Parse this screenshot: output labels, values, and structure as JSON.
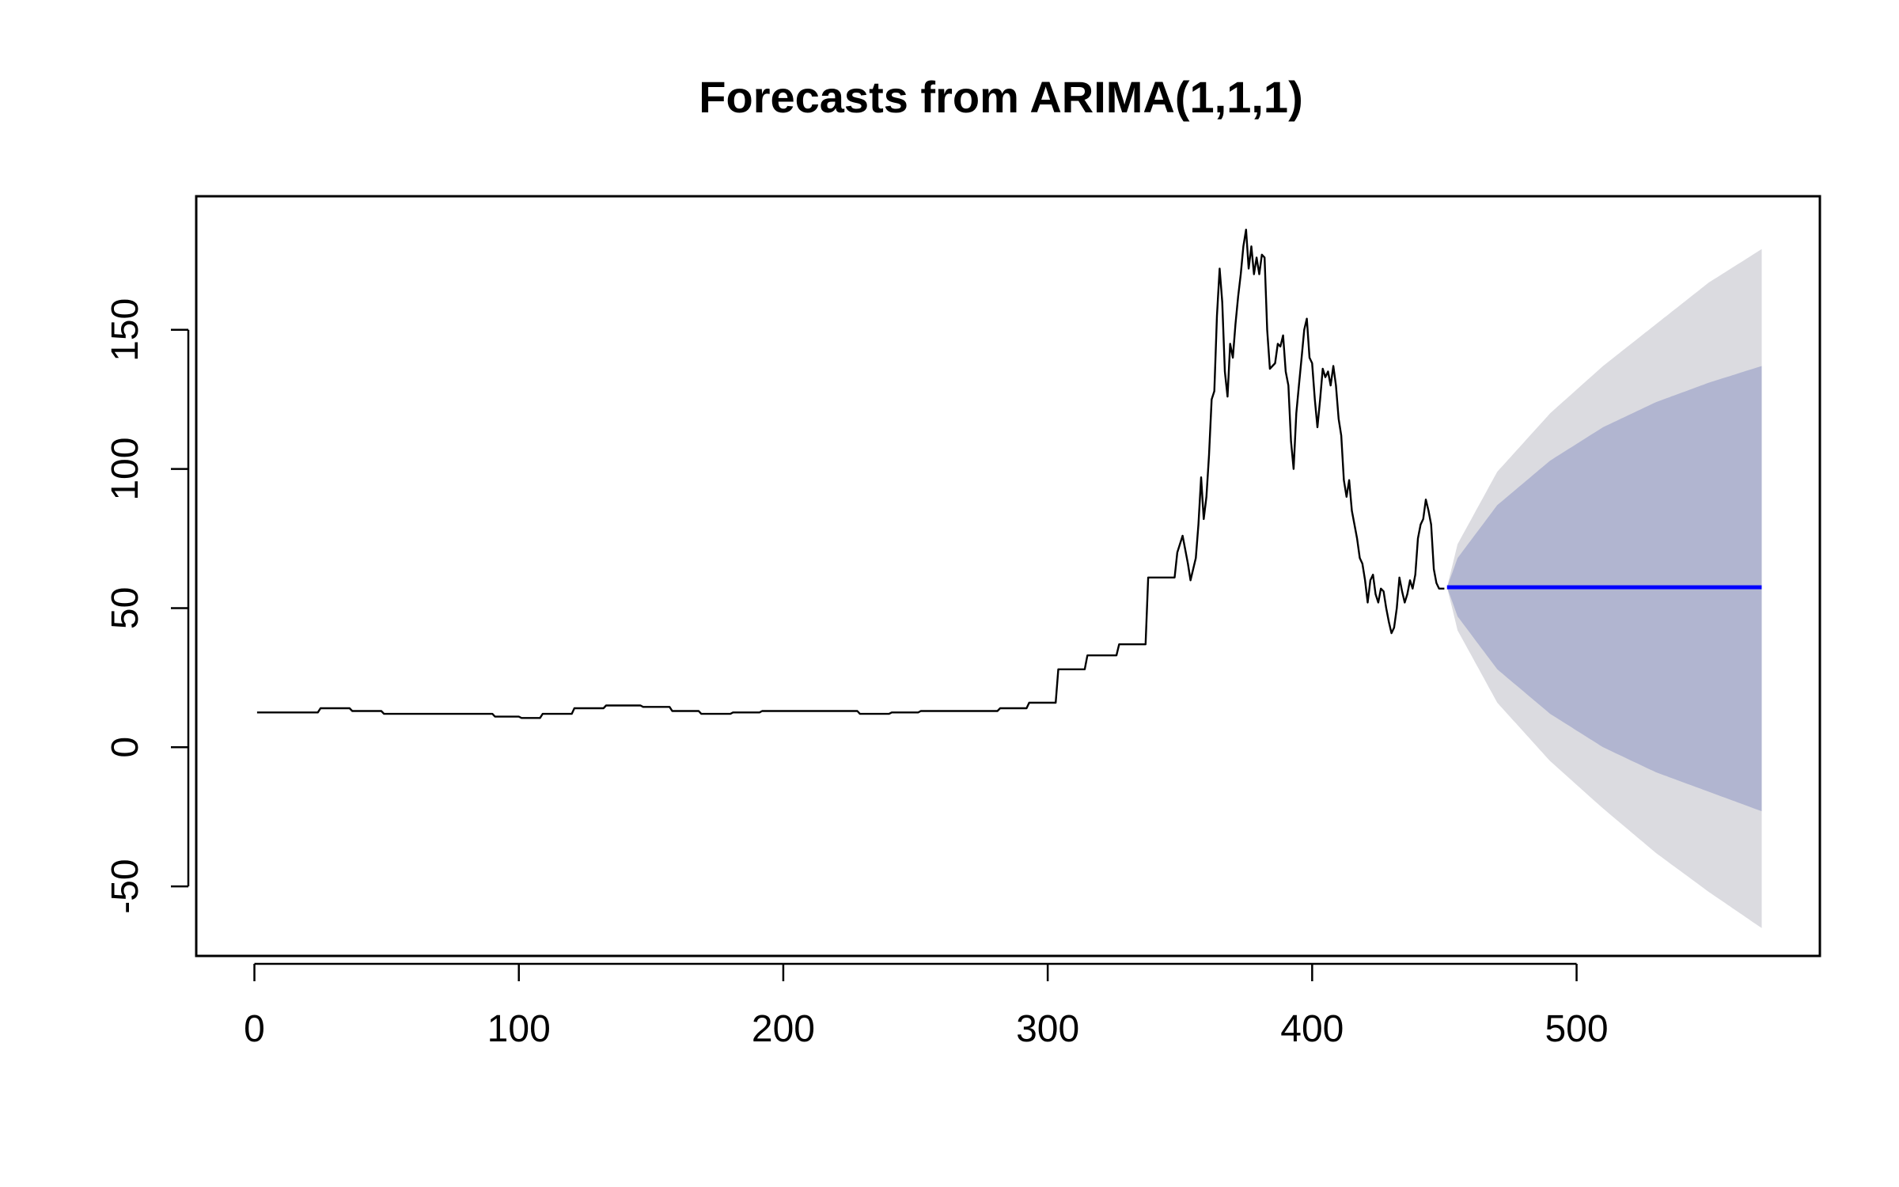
{
  "chart_data": {
    "type": "line",
    "title": "Forecasts from ARIMA(1,1,1)",
    "xlabel": "",
    "ylabel": "",
    "xlim": [
      -22,
      592
    ],
    "ylim": [
      -75,
      198
    ],
    "x_ticks": [
      0,
      100,
      200,
      300,
      400,
      500
    ],
    "y_ticks": [
      -50,
      0,
      50,
      100,
      150
    ],
    "grid": false,
    "colors": {
      "history": "#000000",
      "forecast": "#0000ff",
      "band_95": "#dbdbe0",
      "band_80": "#b1b5d0"
    },
    "history": [
      [
        1,
        12.5
      ],
      [
        24,
        12.5
      ],
      [
        25,
        14
      ],
      [
        36,
        14
      ],
      [
        37,
        13
      ],
      [
        48,
        13
      ],
      [
        49,
        12
      ],
      [
        90,
        12
      ],
      [
        91,
        11
      ],
      [
        100,
        11
      ],
      [
        101,
        10.5
      ],
      [
        108,
        10.5
      ],
      [
        109,
        12
      ],
      [
        120,
        12
      ],
      [
        121,
        14
      ],
      [
        132,
        14
      ],
      [
        133,
        15
      ],
      [
        146,
        15
      ],
      [
        147,
        14.5
      ],
      [
        157,
        14.5
      ],
      [
        158,
        13
      ],
      [
        168,
        13
      ],
      [
        169,
        12
      ],
      [
        180,
        12
      ],
      [
        181,
        12.5
      ],
      [
        191,
        12.5
      ],
      [
        192,
        13
      ],
      [
        228,
        13
      ],
      [
        229,
        12
      ],
      [
        240,
        12
      ],
      [
        241,
        12.5
      ],
      [
        251,
        12.5
      ],
      [
        252,
        13
      ],
      [
        281,
        13
      ],
      [
        282,
        14
      ],
      [
        292,
        14
      ],
      [
        293,
        16
      ],
      [
        303,
        16
      ],
      [
        304,
        28
      ],
      [
        314,
        28
      ],
      [
        315,
        33
      ],
      [
        326,
        33
      ],
      [
        327,
        37
      ],
      [
        337,
        37
      ],
      [
        338,
        61
      ],
      [
        348,
        61
      ],
      [
        349,
        70
      ],
      [
        351,
        76
      ],
      [
        353,
        66
      ],
      [
        354,
        60
      ],
      [
        356,
        68
      ],
      [
        357,
        80
      ],
      [
        358,
        97
      ],
      [
        359,
        82
      ],
      [
        360,
        90
      ],
      [
        361,
        105
      ],
      [
        362,
        125
      ],
      [
        363,
        128
      ],
      [
        364,
        155
      ],
      [
        365,
        172
      ],
      [
        366,
        160
      ],
      [
        367,
        135
      ],
      [
        368,
        126
      ],
      [
        369,
        145
      ],
      [
        370,
        140
      ],
      [
        371,
        152
      ],
      [
        372,
        162
      ],
      [
        373,
        170
      ],
      [
        374,
        180
      ],
      [
        375,
        186
      ],
      [
        376,
        172
      ],
      [
        377,
        180
      ],
      [
        378,
        170
      ],
      [
        379,
        176
      ],
      [
        380,
        170
      ],
      [
        381,
        177
      ],
      [
        382,
        176
      ],
      [
        383,
        150
      ],
      [
        384,
        136
      ],
      [
        385,
        137
      ],
      [
        386,
        138
      ],
      [
        387,
        145
      ],
      [
        388,
        144
      ],
      [
        389,
        148
      ],
      [
        390,
        135
      ],
      [
        391,
        130
      ],
      [
        392,
        110
      ],
      [
        393,
        100
      ],
      [
        394,
        120
      ],
      [
        395,
        130
      ],
      [
        396,
        140
      ],
      [
        397,
        150
      ],
      [
        398,
        154
      ],
      [
        399,
        140
      ],
      [
        400,
        138
      ],
      [
        401,
        125
      ],
      [
        402,
        115
      ],
      [
        403,
        125
      ],
      [
        404,
        136
      ],
      [
        405,
        133
      ],
      [
        406,
        135
      ],
      [
        407,
        130
      ],
      [
        408,
        137
      ],
      [
        409,
        130
      ],
      [
        410,
        118
      ],
      [
        411,
        112
      ],
      [
        412,
        96
      ],
      [
        413,
        90
      ],
      [
        414,
        96
      ],
      [
        415,
        85
      ],
      [
        416,
        80
      ],
      [
        417,
        75
      ],
      [
        418,
        68
      ],
      [
        419,
        66
      ],
      [
        420,
        60
      ],
      [
        421,
        52
      ],
      [
        422,
        60
      ],
      [
        423,
        62
      ],
      [
        424,
        55
      ],
      [
        425,
        52
      ],
      [
        426,
        57
      ],
      [
        427,
        56
      ],
      [
        428,
        50
      ],
      [
        429,
        45
      ],
      [
        430,
        41
      ],
      [
        431,
        43
      ],
      [
        432,
        50
      ],
      [
        433,
        61
      ],
      [
        434,
        56
      ],
      [
        435,
        52
      ],
      [
        436,
        55
      ],
      [
        437,
        60
      ],
      [
        438,
        57
      ],
      [
        439,
        62
      ],
      [
        440,
        75
      ],
      [
        441,
        80
      ],
      [
        442,
        82
      ],
      [
        443,
        89
      ],
      [
        444,
        85
      ],
      [
        445,
        80
      ],
      [
        446,
        64
      ],
      [
        447,
        59
      ],
      [
        448,
        57
      ],
      [
        449,
        57
      ],
      [
        450,
        57
      ]
    ],
    "forecast": {
      "x_start": 451,
      "x_end": 570,
      "mean": 57.5,
      "samples": [
        {
          "x": 451,
          "lo95": 57.5,
          "lo80": 57.5,
          "hi80": 57.5,
          "hi95": 57.5
        },
        {
          "x": 455,
          "lo95": 42,
          "lo80": 47,
          "hi80": 68,
          "hi95": 73
        },
        {
          "x": 470,
          "lo95": 16,
          "lo80": 28,
          "hi80": 87,
          "hi95": 99
        },
        {
          "x": 490,
          "lo95": -5,
          "lo80": 12,
          "hi80": 103,
          "hi95": 120
        },
        {
          "x": 510,
          "lo95": -22,
          "lo80": 0,
          "hi80": 115,
          "hi95": 137
        },
        {
          "x": 530,
          "lo95": -38,
          "lo80": -9,
          "hi80": 124,
          "hi95": 152
        },
        {
          "x": 550,
          "lo95": -52,
          "lo80": -16,
          "hi80": 131,
          "hi95": 167
        },
        {
          "x": 570,
          "lo95": -65,
          "lo80": -23,
          "hi80": 137,
          "hi95": 179
        }
      ]
    }
  }
}
